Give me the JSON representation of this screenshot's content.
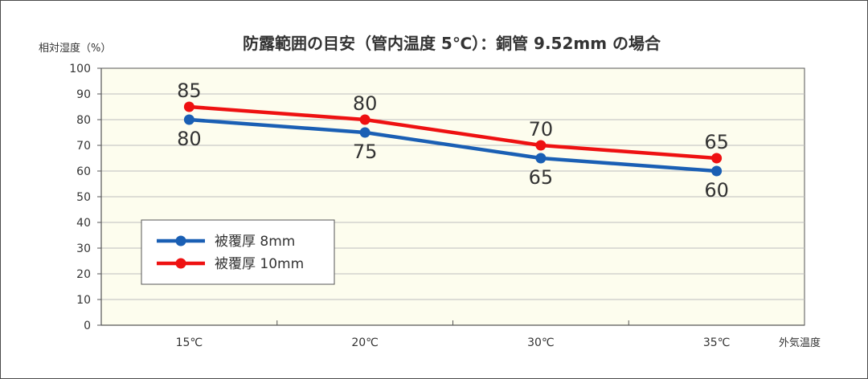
{
  "chart_data": {
    "type": "line",
    "title": "防露範囲の目安（管内温度 5℃）：銅管 9.52mm の場合",
    "ylabel": "相対湿度（%）",
    "xlabel": "外気温度",
    "categories": [
      "15℃",
      "20℃",
      "30℃",
      "35℃"
    ],
    "ylim": [
      0,
      100
    ],
    "yticks": [
      0,
      10,
      20,
      30,
      40,
      50,
      60,
      70,
      80,
      90,
      100
    ],
    "grid": true,
    "legend_position": "bottom-left",
    "plot_background": "#fdfdee",
    "series": [
      {
        "name": "被覆厚 8mm",
        "values": [
          80,
          75,
          65,
          60
        ],
        "color": "#1a5fb4",
        "label_position": "below"
      },
      {
        "name": "被覆厚 10mm",
        "values": [
          85,
          80,
          70,
          65
        ],
        "color": "#ee1111",
        "label_position": "above"
      }
    ]
  }
}
